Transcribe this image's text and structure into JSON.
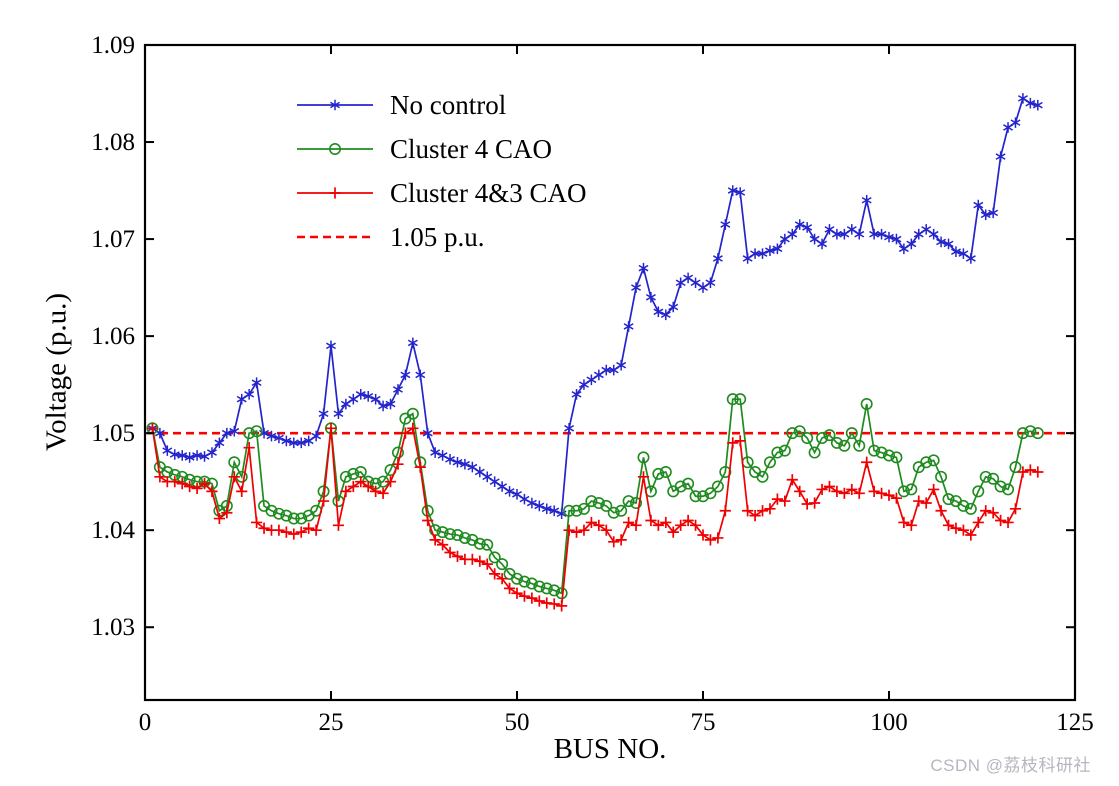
{
  "figure": {
    "watermark": "CSDN @荔枝科研社"
  },
  "chart_data": {
    "type": "line",
    "title": "",
    "xlabel": "BUS NO.",
    "ylabel": "Voltage (p.u.)",
    "xlim": [
      0,
      125
    ],
    "ylim": [
      1.0225,
      1.09
    ],
    "x_ticks": [
      0,
      25,
      50,
      75,
      100,
      125
    ],
    "y_ticks": [
      1.03,
      1.04,
      1.05,
      1.06,
      1.07,
      1.08,
      1.09
    ],
    "grid": false,
    "legend_position": "upper-left-inside",
    "reference_line": {
      "label": "1.05 p.u.",
      "value": 1.05,
      "color": "#ff0000",
      "style": "dashed"
    },
    "x": [
      1,
      2,
      3,
      4,
      5,
      6,
      7,
      8,
      9,
      10,
      11,
      12,
      13,
      14,
      15,
      16,
      17,
      18,
      19,
      20,
      21,
      22,
      23,
      24,
      25,
      26,
      27,
      28,
      29,
      30,
      31,
      32,
      33,
      34,
      35,
      36,
      37,
      38,
      39,
      40,
      41,
      42,
      43,
      44,
      45,
      46,
      47,
      48,
      49,
      50,
      51,
      52,
      53,
      54,
      55,
      56,
      57,
      58,
      59,
      60,
      61,
      62,
      63,
      64,
      65,
      66,
      67,
      68,
      69,
      70,
      71,
      72,
      73,
      74,
      75,
      76,
      77,
      78,
      79,
      80,
      81,
      82,
      83,
      84,
      85,
      86,
      87,
      88,
      89,
      90,
      91,
      92,
      93,
      94,
      95,
      96,
      97,
      98,
      99,
      100,
      101,
      102,
      103,
      104,
      105,
      106,
      107,
      108,
      109,
      110,
      111,
      112,
      113,
      114,
      115,
      116,
      117,
      118,
      119,
      120
    ],
    "series": [
      {
        "name": "No control",
        "color": "#2424cd",
        "marker": "asterisk",
        "values": [
          1.0505,
          1.05,
          1.0482,
          1.0478,
          1.0477,
          1.0475,
          1.0477,
          1.0476,
          1.048,
          1.049,
          1.05,
          1.0502,
          1.0535,
          1.054,
          1.0552,
          1.05,
          1.0497,
          1.0495,
          1.0492,
          1.049,
          1.049,
          1.0492,
          1.0497,
          1.052,
          1.059,
          1.052,
          1.053,
          1.0535,
          1.054,
          1.0538,
          1.0535,
          1.0528,
          1.053,
          1.0545,
          1.056,
          1.0593,
          1.056,
          1.05,
          1.048,
          1.0477,
          1.0473,
          1.047,
          1.0468,
          1.0465,
          1.046,
          1.0455,
          1.045,
          1.0445,
          1.044,
          1.0437,
          1.0432,
          1.0428,
          1.0425,
          1.0422,
          1.042,
          1.0417,
          1.0505,
          1.054,
          1.055,
          1.0555,
          1.056,
          1.0565,
          1.0565,
          1.057,
          1.061,
          1.065,
          1.067,
          1.064,
          1.0625,
          1.0622,
          1.063,
          1.0655,
          1.066,
          1.0655,
          1.065,
          1.0655,
          1.068,
          1.0715,
          1.075,
          1.0748,
          1.068,
          1.0685,
          1.0685,
          1.0688,
          1.069,
          1.07,
          1.0705,
          1.0715,
          1.0712,
          1.07,
          1.0695,
          1.071,
          1.0705,
          1.0705,
          1.071,
          1.0705,
          1.074,
          1.0705,
          1.0705,
          1.0702,
          1.07,
          1.069,
          1.0695,
          1.0705,
          1.071,
          1.0705,
          1.0697,
          1.0695,
          1.0687,
          1.0685,
          1.068,
          1.0735,
          1.0725,
          1.0727,
          1.0785,
          1.0815,
          1.082,
          1.0845,
          1.084,
          1.0838
        ]
      },
      {
        "name": "Cluster 4 CAO",
        "color": "#1f8b1f",
        "marker": "circle",
        "values": [
          1.0505,
          1.0465,
          1.046,
          1.0457,
          1.0455,
          1.0452,
          1.045,
          1.045,
          1.0448,
          1.042,
          1.0425,
          1.047,
          1.0455,
          1.05,
          1.0502,
          1.0425,
          1.042,
          1.0417,
          1.0415,
          1.0412,
          1.0412,
          1.0415,
          1.042,
          1.044,
          1.0505,
          1.043,
          1.0455,
          1.0458,
          1.046,
          1.045,
          1.0448,
          1.045,
          1.0462,
          1.048,
          1.0515,
          1.052,
          1.047,
          1.042,
          1.04,
          1.0398,
          1.0396,
          1.0395,
          1.0392,
          1.039,
          1.0386,
          1.0385,
          1.0372,
          1.0365,
          1.0355,
          1.035,
          1.0347,
          1.0345,
          1.0342,
          1.034,
          1.0338,
          1.0335,
          1.042,
          1.042,
          1.0422,
          1.043,
          1.0428,
          1.0425,
          1.0418,
          1.042,
          1.043,
          1.0428,
          1.0475,
          1.044,
          1.0458,
          1.046,
          1.044,
          1.0445,
          1.0448,
          1.0435,
          1.0435,
          1.0438,
          1.0445,
          1.046,
          1.0535,
          1.0535,
          1.047,
          1.046,
          1.0455,
          1.047,
          1.048,
          1.0482,
          1.05,
          1.0502,
          1.0495,
          1.048,
          1.0495,
          1.0498,
          1.049,
          1.0487,
          1.05,
          1.0487,
          1.053,
          1.0482,
          1.048,
          1.0477,
          1.0475,
          1.044,
          1.0442,
          1.0465,
          1.047,
          1.0472,
          1.0455,
          1.0432,
          1.043,
          1.0425,
          1.0422,
          1.044,
          1.0455,
          1.0453,
          1.0445,
          1.0442,
          1.0465,
          1.05,
          1.0502,
          1.05
        ]
      },
      {
        "name": "Cluster 4&3 CAO",
        "color": "#f00000",
        "marker": "plus",
        "values": [
          1.0505,
          1.0455,
          1.045,
          1.045,
          1.0448,
          1.0445,
          1.0443,
          1.0448,
          1.044,
          1.0412,
          1.0418,
          1.0455,
          1.044,
          1.0485,
          1.0408,
          1.0402,
          1.04,
          1.04,
          1.0398,
          1.0396,
          1.0398,
          1.0402,
          1.04,
          1.043,
          1.0505,
          1.0405,
          1.044,
          1.0445,
          1.045,
          1.0445,
          1.044,
          1.0438,
          1.045,
          1.0468,
          1.05,
          1.0505,
          1.0465,
          1.041,
          1.039,
          1.0385,
          1.0377,
          1.0373,
          1.037,
          1.037,
          1.0368,
          1.0365,
          1.0355,
          1.035,
          1.034,
          1.0335,
          1.0332,
          1.033,
          1.0327,
          1.0325,
          1.0324,
          1.0322,
          1.04,
          1.0398,
          1.04,
          1.0408,
          1.0405,
          1.04,
          1.0388,
          1.039,
          1.0408,
          1.0405,
          1.0455,
          1.041,
          1.0405,
          1.0408,
          1.0398,
          1.0405,
          1.041,
          1.0405,
          1.0395,
          1.039,
          1.0392,
          1.042,
          1.049,
          1.0492,
          1.042,
          1.0415,
          1.042,
          1.0422,
          1.0432,
          1.043,
          1.0452,
          1.044,
          1.0427,
          1.0428,
          1.0442,
          1.0445,
          1.044,
          1.0438,
          1.0442,
          1.0438,
          1.047,
          1.044,
          1.0438,
          1.0436,
          1.0433,
          1.0408,
          1.0405,
          1.043,
          1.0428,
          1.0442,
          1.042,
          1.0405,
          1.0402,
          1.04,
          1.0395,
          1.0408,
          1.042,
          1.0418,
          1.041,
          1.0408,
          1.0422,
          1.046,
          1.0462,
          1.046
        ]
      }
    ]
  }
}
